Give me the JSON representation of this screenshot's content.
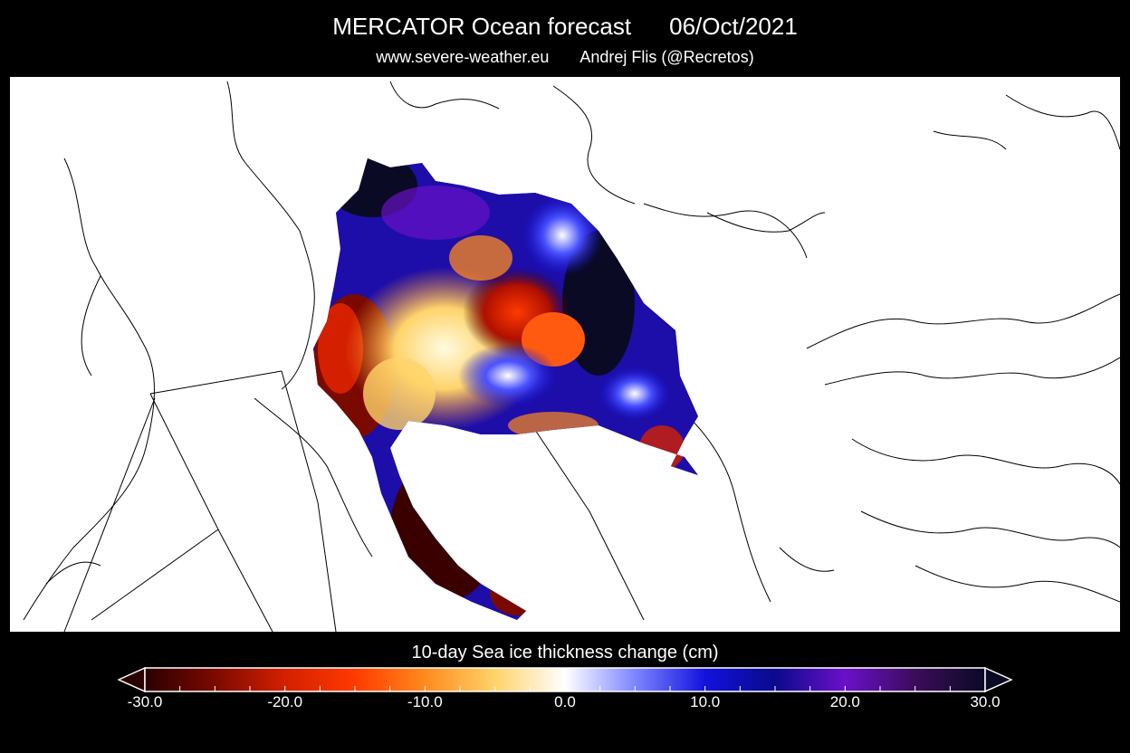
{
  "title": {
    "model": "MERCATOR Ocean forecast",
    "date": "06/Oct/2021"
  },
  "credits": {
    "website": "www.severe-weather.eu",
    "author": "Andrej Flis (@Recretos)"
  },
  "colorbar": {
    "label": "10-day Sea ice thickness change (cm)",
    "range": [
      -30,
      30
    ],
    "tick_labels": [
      "-30.0",
      "-20.0",
      "-10.0",
      "0.0",
      "10.0",
      "20.0",
      "30.0"
    ],
    "extend": "both",
    "colors": [
      "#2b0000",
      "#7a0a00",
      "#d42000",
      "#ff3a00",
      "#ff8a1e",
      "#ffd36a",
      "#ffffff",
      "#7e86ff",
      "#1212dc",
      "#0a0a8c",
      "#6a10c8",
      "#3c0c5a",
      "#0a0a24"
    ]
  },
  "map": {
    "projection": "polar-stereographic",
    "land_color": "#ffffff",
    "coastline_color": "#000000",
    "region": "Arctic Ocean sea ice"
  }
}
